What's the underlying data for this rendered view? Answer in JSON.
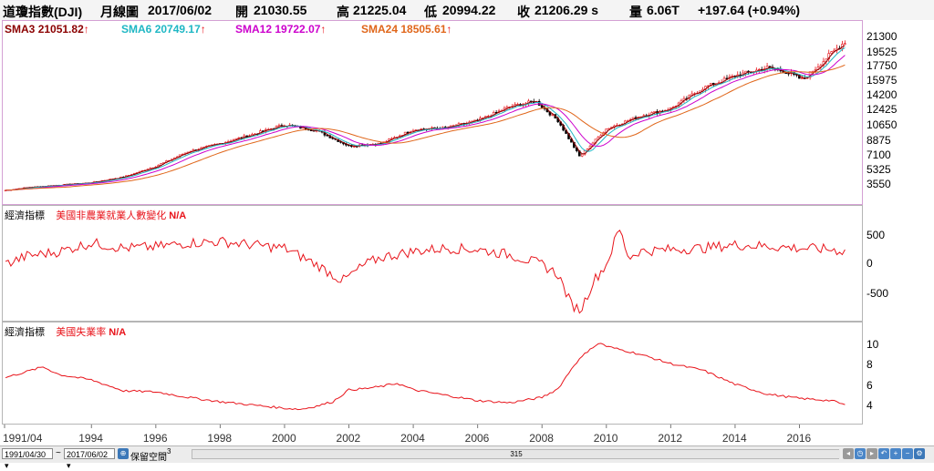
{
  "header": {
    "name": "道瓊指數(DJI)",
    "period": "月線圖",
    "date": "2017/06/02",
    "open_label": "開",
    "open": "21030.55",
    "high_label": "高",
    "high": "21225.04",
    "low_label": "低",
    "low": "20994.22",
    "close_label": "收",
    "close": "21206.29 s",
    "volume_label": "量",
    "volume": "6.06T",
    "change": "+197.64 (+0.94%)"
  },
  "legend": [
    {
      "label": "SMA3",
      "value": "21051.82",
      "arrow": "↑",
      "color": "#8b0000"
    },
    {
      "label": "SMA6",
      "value": "20749.17",
      "arrow": "↑",
      "color": "#1fb7c4"
    },
    {
      "label": "SMA12",
      "value": "19722.07",
      "arrow": "↑",
      "color": "#cc00cc"
    },
    {
      "label": "SMA24",
      "value": "18505.61",
      "arrow": "↑",
      "color": "#e0661a"
    }
  ],
  "indicator1": {
    "category": "經濟指標",
    "name": "美國非農業就業人數變化",
    "value": "N/A"
  },
  "indicator2": {
    "category": "經濟指標",
    "name": "美國失業率",
    "value": "N/A"
  },
  "bottom": {
    "start_date": "1991/04/30",
    "tilde": "~",
    "end_date": "2017/06/02",
    "keep_space_label": "保留空間",
    "keep_space_value": "3",
    "scroll_value": "315"
  },
  "colors": {
    "up": "#e8141b",
    "down": "#000000",
    "indicator": "#e8141b",
    "sma3": "#8b0000",
    "sma6": "#1fb7c4",
    "sma12": "#cc00cc",
    "sma24": "#e0661a"
  },
  "chart_data": [
    {
      "type": "candlestick",
      "title": "道瓊指數(DJI) 月線圖",
      "x": [
        1991.3,
        1992,
        1993,
        1994,
        1995,
        1996,
        1997,
        1998,
        1999,
        2000,
        2001,
        2002,
        2003,
        2004,
        2005,
        2006,
        2007,
        2007.8,
        2008.5,
        2009.17,
        2010,
        2011,
        2012,
        2013,
        2014,
        2015,
        2015.6,
        2016.1,
        2016.5,
        2017,
        2017.42
      ],
      "y": [
        2950,
        3300,
        3600,
        3900,
        4600,
        5900,
        7700,
        8700,
        9800,
        11000,
        10300,
        8400,
        8700,
        10400,
        10600,
        11500,
        13200,
        13900,
        11500,
        7100,
        10500,
        12000,
        13000,
        15500,
        17000,
        18000,
        17500,
        16500,
        17900,
        19800,
        21206
      ],
      "ylim": [
        2500,
        22500
      ],
      "ytick_labels": [
        "21300",
        "19525",
        "17750",
        "15975",
        "14200",
        "12425",
        "10650",
        "8875",
        "7100",
        "5325",
        "3550"
      ],
      "xtick_labels": [
        "1991/04",
        "1994",
        "1996",
        "1998",
        "2000",
        "2002",
        "2004",
        "2006",
        "2008",
        "2010",
        "2012",
        "2014",
        "2016"
      ],
      "xlim": [
        1991.3,
        2017.8
      ],
      "series": [
        {
          "name": "SMA3",
          "last": 21051.82
        },
        {
          "name": "SMA6",
          "last": 20749.17
        },
        {
          "name": "SMA12",
          "last": 19722.07
        },
        {
          "name": "SMA24",
          "last": 18505.61
        }
      ]
    },
    {
      "type": "line",
      "name": "美國非農業就業人數變化",
      "x": [
        1991.3,
        1992,
        1993,
        1994,
        1995,
        1996,
        1997,
        1998,
        1999,
        2000,
        2001,
        2001.8,
        2002.5,
        2003,
        2004,
        2005,
        2006,
        2007,
        2008,
        2008.5,
        2008.9,
        2009.2,
        2009.6,
        2010,
        2010.4,
        2010.7,
        2011,
        2012,
        2013,
        2014,
        2015,
        2016,
        2017,
        2017.42
      ],
      "y": [
        -50,
        80,
        150,
        280,
        200,
        220,
        280,
        300,
        250,
        200,
        -50,
        -300,
        -50,
        60,
        150,
        200,
        180,
        100,
        -50,
        -200,
        -650,
        -750,
        -300,
        -50,
        500,
        50,
        150,
        180,
        200,
        250,
        230,
        200,
        180,
        150
      ],
      "ylim": [
        -850,
        650
      ],
      "ytick_labels": [
        "500",
        "0",
        "-500"
      ]
    },
    {
      "type": "line",
      "name": "美國失業率",
      "x": [
        1991.3,
        1991.9,
        1992.5,
        1993,
        1994,
        1995,
        1996,
        1997,
        1998,
        1999,
        2000,
        2000.5,
        2001,
        2001.5,
        2002,
        2002.5,
        2003,
        2003.5,
        2004,
        2005,
        2006,
        2007,
        2008,
        2008.5,
        2009,
        2009.5,
        2009.83,
        2010,
        2011,
        2012,
        2013,
        2014,
        2015,
        2016,
        2017,
        2017.42
      ],
      "y": [
        6.8,
        7.3,
        7.8,
        7.1,
        6.6,
        5.6,
        5.5,
        5.0,
        4.6,
        4.3,
        4.0,
        3.9,
        4.2,
        4.6,
        5.7,
        5.8,
        6.0,
        6.3,
        5.7,
        5.2,
        4.7,
        4.5,
        5.0,
        5.8,
        8.0,
        9.5,
        10.0,
        9.7,
        9.0,
        8.1,
        7.5,
        6.2,
        5.3,
        4.9,
        4.7,
        4.3
      ],
      "ylim": [
        3.0,
        10.8
      ],
      "ytick_labels": [
        "10",
        "8",
        "6",
        "4"
      ]
    }
  ]
}
